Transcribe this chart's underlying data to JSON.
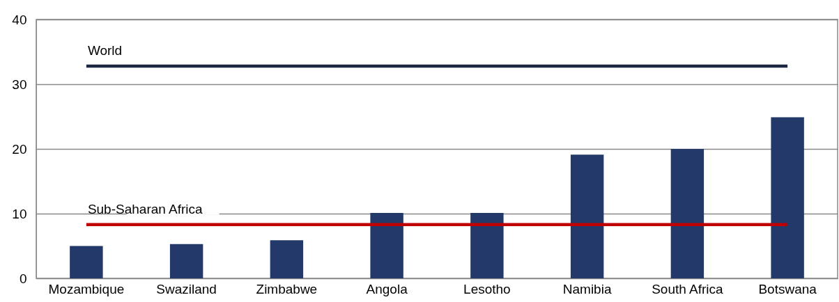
{
  "chart_data": {
    "type": "bar",
    "categories": [
      "Mozambique",
      "Swaziland",
      "Zimbabwe",
      "Angola",
      "Lesotho",
      "Namibia",
      "South Africa",
      "Botswana"
    ],
    "values": [
      5,
      5.3,
      5.9,
      10.1,
      10.1,
      19.1,
      20,
      24.9
    ],
    "color": "#22396a",
    "ylim": [
      0,
      40
    ],
    "yticks": [
      0,
      10,
      20,
      30,
      40
    ],
    "grid": "y",
    "ref_lines": [
      {
        "axis": "y",
        "value": 32.8,
        "label": "World",
        "color": "#1c2841"
      },
      {
        "axis": "y",
        "value": 8.3,
        "label": "Sub-Saharan Africa",
        "color": "#c00000"
      }
    ]
  }
}
